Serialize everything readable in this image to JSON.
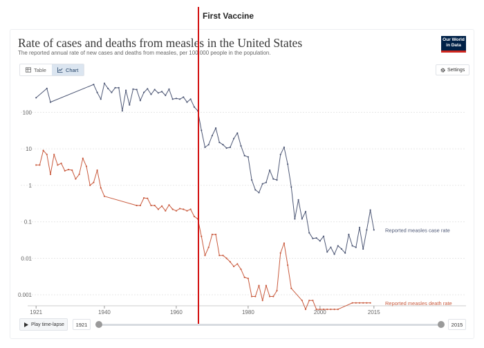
{
  "header": {
    "title": "Rate of cases and deaths from measles in the United States",
    "subtitle": "The reported annual rate of new cases and deaths from measles, per 100,000 people in the population.",
    "logo_line1": "Our World",
    "logo_line2": "in Data"
  },
  "tabs": [
    {
      "label": "Table",
      "icon": "table-icon",
      "active": false
    },
    {
      "label": "Chart",
      "icon": "line-chart-icon",
      "active": true
    }
  ],
  "settings_label": "Settings",
  "annotation": {
    "label": "First Vaccine",
    "year": 1963,
    "color": "#d20f0f"
  },
  "timeline": {
    "play_label": "Play time-lapse",
    "start_year": "1921",
    "end_year": "2015"
  },
  "colors": {
    "cases": "#4d5775",
    "deaths": "#c95a3d",
    "grid": "#e6e6e6",
    "axis_text": "#666666"
  },
  "chart_data": {
    "type": "line",
    "title": "Rate of cases and deaths from measles in the United States",
    "xlabel": "",
    "ylabel": "",
    "xlim": [
      1920,
      2016
    ],
    "ylim": [
      0.0005,
      900
    ],
    "yscale": "log",
    "x_ticks": [
      "1921",
      "1940",
      "1960",
      "1980",
      "2000",
      "2015"
    ],
    "y_ticks": [
      "0.001",
      "0.01",
      "0.1",
      "1",
      "10",
      "100"
    ],
    "grid": true,
    "series": [
      {
        "name": "Reported measles case rate",
        "color": "#4d5775",
        "points": [
          [
            1921,
            250
          ],
          [
            1924,
            450
          ],
          [
            1925,
            190
          ],
          [
            1937,
            580
          ],
          [
            1938,
            350
          ],
          [
            1939,
            230
          ],
          [
            1940,
            620
          ],
          [
            1941,
            450
          ],
          [
            1942,
            350
          ],
          [
            1943,
            470
          ],
          [
            1944,
            470
          ],
          [
            1945,
            110
          ],
          [
            1946,
            400
          ],
          [
            1947,
            160
          ],
          [
            1948,
            430
          ],
          [
            1949,
            420
          ],
          [
            1950,
            210
          ],
          [
            1951,
            350
          ],
          [
            1952,
            440
          ],
          [
            1953,
            310
          ],
          [
            1954,
            420
          ],
          [
            1955,
            340
          ],
          [
            1956,
            370
          ],
          [
            1957,
            290
          ],
          [
            1958,
            430
          ],
          [
            1959,
            230
          ],
          [
            1960,
            240
          ],
          [
            1961,
            230
          ],
          [
            1962,
            260
          ],
          [
            1963,
            190
          ],
          [
            1964,
            230
          ],
          [
            1965,
            140
          ],
          [
            1966,
            110
          ],
          [
            1967,
            32
          ],
          [
            1968,
            11
          ],
          [
            1969,
            13
          ],
          [
            1970,
            23
          ],
          [
            1971,
            37
          ],
          [
            1972,
            15
          ],
          [
            1973,
            13
          ],
          [
            1974,
            10.5
          ],
          [
            1975,
            11
          ],
          [
            1976,
            19
          ],
          [
            1977,
            27
          ],
          [
            1978,
            12
          ],
          [
            1979,
            6.5
          ],
          [
            1980,
            6
          ],
          [
            1981,
            1.4
          ],
          [
            1982,
            0.75
          ],
          [
            1983,
            0.63
          ],
          [
            1984,
            1.1
          ],
          [
            1985,
            1.2
          ],
          [
            1986,
            2.6
          ],
          [
            1987,
            1.5
          ],
          [
            1988,
            1.4
          ],
          [
            1989,
            7
          ],
          [
            1990,
            11
          ],
          [
            1991,
            3.8
          ],
          [
            1992,
            0.9
          ],
          [
            1993,
            0.12
          ],
          [
            1994,
            0.4
          ],
          [
            1995,
            0.12
          ],
          [
            1996,
            0.19
          ],
          [
            1997,
            0.05
          ],
          [
            1998,
            0.035
          ],
          [
            1999,
            0.036
          ],
          [
            2000,
            0.03
          ],
          [
            2001,
            0.04
          ],
          [
            2002,
            0.015
          ],
          [
            2003,
            0.02
          ],
          [
            2004,
            0.013
          ],
          [
            2005,
            0.022
          ],
          [
            2006,
            0.018
          ],
          [
            2007,
            0.014
          ],
          [
            2008,
            0.045
          ],
          [
            2009,
            0.022
          ],
          [
            2010,
            0.02
          ],
          [
            2011,
            0.07
          ],
          [
            2012,
            0.018
          ],
          [
            2013,
            0.06
          ],
          [
            2014,
            0.21
          ],
          [
            2015,
            0.06
          ]
        ]
      },
      {
        "name": "Reported measles death rate",
        "color": "#c95a3d",
        "points": [
          [
            1921,
            3.6
          ],
          [
            1922,
            3.6
          ],
          [
            1923,
            9
          ],
          [
            1924,
            7
          ],
          [
            1925,
            2
          ],
          [
            1926,
            7
          ],
          [
            1927,
            3.6
          ],
          [
            1928,
            4
          ],
          [
            1929,
            2.5
          ],
          [
            1930,
            2.7
          ],
          [
            1931,
            2.6
          ],
          [
            1932,
            1.5
          ],
          [
            1933,
            2
          ],
          [
            1934,
            5.5
          ],
          [
            1935,
            3.3
          ],
          [
            1936,
            1
          ],
          [
            1937,
            1.2
          ],
          [
            1938,
            2.6
          ],
          [
            1939,
            0.85
          ],
          [
            1940,
            0.5
          ],
          [
            1949,
            0.28
          ],
          [
            1950,
            0.28
          ],
          [
            1951,
            0.45
          ],
          [
            1952,
            0.44
          ],
          [
            1953,
            0.28
          ],
          [
            1954,
            0.28
          ],
          [
            1955,
            0.22
          ],
          [
            1956,
            0.27
          ],
          [
            1957,
            0.2
          ],
          [
            1958,
            0.29
          ],
          [
            1959,
            0.22
          ],
          [
            1960,
            0.2
          ],
          [
            1961,
            0.23
          ],
          [
            1962,
            0.22
          ],
          [
            1963,
            0.2
          ],
          [
            1964,
            0.22
          ],
          [
            1965,
            0.14
          ],
          [
            1966,
            0.12
          ],
          [
            1967,
            0.04
          ],
          [
            1968,
            0.012
          ],
          [
            1969,
            0.02
          ],
          [
            1970,
            0.045
          ],
          [
            1971,
            0.045
          ],
          [
            1972,
            0.012
          ],
          [
            1973,
            0.012
          ],
          [
            1974,
            0.01
          ],
          [
            1975,
            0.008
          ],
          [
            1976,
            0.006
          ],
          [
            1977,
            0.007
          ],
          [
            1978,
            0.005
          ],
          [
            1979,
            0.003
          ],
          [
            1980,
            0.0028
          ],
          [
            1981,
            0.0009
          ],
          [
            1982,
            0.0009
          ],
          [
            1983,
            0.0018
          ],
          [
            1984,
            0.0007
          ],
          [
            1985,
            0.0018
          ],
          [
            1986,
            0.0009
          ],
          [
            1987,
            0.0009
          ],
          [
            1988,
            0.0013
          ],
          [
            1989,
            0.014
          ],
          [
            1990,
            0.026
          ],
          [
            1991,
            0.0065
          ],
          [
            1992,
            0.0015
          ],
          [
            1995,
            0.0007
          ],
          [
            1996,
            0.0004
          ],
          [
            1997,
            0.0007
          ],
          [
            1998,
            0.0007
          ],
          [
            1999,
            0.0004
          ],
          [
            2000,
            0.0004
          ],
          [
            2001,
            0.0004
          ],
          [
            2002,
            0.0004
          ],
          [
            2003,
            0.0004
          ],
          [
            2004,
            0.0004
          ],
          [
            2005,
            0.0004
          ],
          [
            2009,
            0.0006
          ],
          [
            2010,
            0.0006
          ],
          [
            2011,
            0.0006
          ],
          [
            2012,
            0.0006
          ],
          [
            2013,
            0.0006
          ],
          [
            2014,
            0.0006
          ]
        ]
      }
    ]
  }
}
